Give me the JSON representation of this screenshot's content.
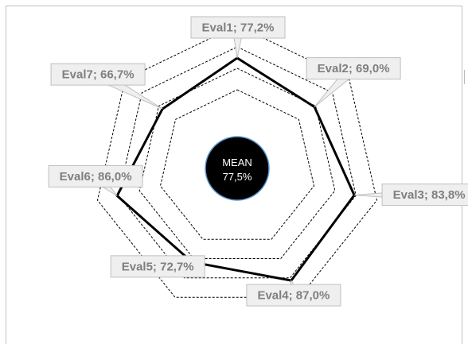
{
  "chart_data": {
    "type": "radar",
    "title": "",
    "grid": true,
    "grid_style": "dashed heptagons",
    "axes": [
      "Eval1",
      "Eval2",
      "Eval3",
      "Eval4",
      "Eval5",
      "Eval6",
      "Eval7"
    ],
    "values": [
      77.2,
      69.0,
      83.8,
      87.0,
      72.7,
      86.0,
      66.7
    ],
    "labels": [
      "Eval1; 77,2%",
      "Eval2; 69,0%",
      "Eval3; 83,8%",
      "Eval4; 87,0%",
      "Eval5; 72,7%",
      "Eval6; 86,0%",
      "Eval7; 66,7%"
    ],
    "unit": "%",
    "center": {
      "title": "MEAN",
      "value": "77,5%",
      "numeric": 77.5
    },
    "colors": {
      "series": "#000000",
      "grid": "#000000",
      "callout_fill": "#efefef",
      "callout_border": "#bfbfbf",
      "callout_text": "#7f7f7f",
      "center_fill": "#000000",
      "center_border": "#5b9bd5"
    }
  }
}
